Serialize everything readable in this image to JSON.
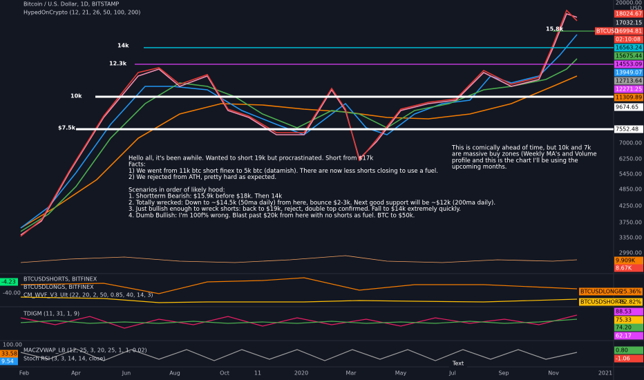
{
  "header": {
    "symbol": "Bitcoin / U.S. Dollar, 1D, BITSTAMP",
    "indicator": "HypedOnCrypto (12, 21, 26, 50, 100, 200)"
  },
  "levels": [
    "15.8k",
    "14k",
    "12.3k",
    "10k",
    "$7.5k"
  ],
  "notes": {
    "left": [
      "Hello all, it's been awhile. Wanted to short 19k but procrastinated. Short from $17k",
      "Facts:",
      "1) We went from 11k btc short finex to 5k btc (datamish). There are now less shorts closing to use a fuel.",
      "2) We rejected from ATH, pretty hard as expected.",
      "Scenarios in order of likely hood:",
      "1. Shortterm Bearish: $15.9k before $18k. Then 14k",
      "2. Totally wrecked: Down to ~$14.5k  (50ma daily) from here, bounce $2-3k. Next good support will be ~$12k (200ma daily).",
      "3. Just bullish enough to wreck shorts: back to $19k, reject, double top confirmed. Fall to $14k extremely quickly.",
      "4. Dumb Bullish: I'm 100f% wrong. Blast past $20k from here with no shorts as fuel. BTC to $50k."
    ],
    "right": [
      "This is comically ahead of time, but 10k and 7k",
      "are massive buy zones (Weekly MA's and Volume",
      "profile  and this is the chart I'll be using the",
      "upcoming months."
    ]
  },
  "price_axis": {
    "scale": [
      "20000.00",
      "USD",
      "7000.00",
      "6250.00",
      "5450.00",
      "4850.00",
      "4250.00",
      "3750.00",
      "3350.00",
      "2990.00"
    ],
    "tags": [
      "18024.67",
      "17032.15",
      "16994.81",
      "02:10:08",
      "16563.24",
      "15675.44",
      "14553.09",
      "13949.07",
      "12713.64",
      "12271.25",
      "11309.89",
      "9674.65",
      "7552.48",
      "9.909K",
      "8.67K"
    ],
    "symbol_tag": "BTCUSD"
  },
  "panes": {
    "shorts_longs": {
      "titles": [
        "BTCUSDSHORTS, BITFINEX",
        "BTCUSDLONGS, BITFINEX",
        "CM_WVF_V3_Ult (22, 20, 2, 50, 0.85, 40, 14, 3)"
      ],
      "left": [
        "-4.23",
        "-40.00"
      ],
      "tags": [
        [
          "BTCUSDLONGS",
          "-25.36%"
        ],
        [
          "BTCUSDSHORTS",
          "-82.82%"
        ]
      ]
    },
    "tdi": {
      "title": "TDIGM (11, 31, 1, 9)",
      "tags": [
        "88.53",
        "75.33",
        "74.20",
        "62.17"
      ]
    },
    "macd": {
      "titles": [
        "MACZVWAP_LB (12, 25, 3, 20, 25, 1, 1, 0.02)",
        "Stoch RSI (3, 3, 14, 14, close)"
      ],
      "left": [
        "100.00",
        "33.58",
        "9.54"
      ],
      "tags": [
        "0.80",
        "-1.06"
      ]
    }
  },
  "time_axis": [
    "Feb",
    "Apr",
    "Jun",
    "Aug",
    "Oct",
    "11",
    "2020",
    "Mar",
    "May",
    "Jul",
    "Sep",
    "Nov",
    "2021"
  ],
  "cursor_label": "Text"
}
